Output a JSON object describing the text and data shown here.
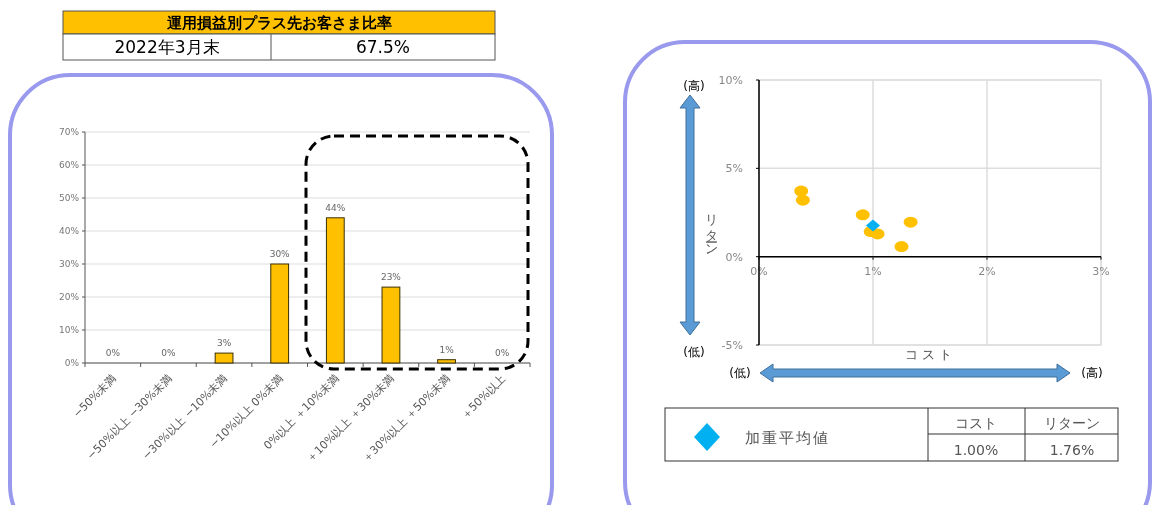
{
  "chart_data": [
    {
      "type": "other",
      "title": "運用損益別プラス先お客さま比率",
      "annotations": [
        "2022年3月末",
        "67.5%"
      ]
    },
    {
      "type": "bar",
      "categories": [
        "−50%未満",
        "−50%以上 −30%未満",
        "−30%以上 −10%未満",
        "−10%以上 0%未満",
        "0%以上 ＋10%未満",
        "＋10%以上 ＋30%未満",
        "＋30%以上 ＋50%未満",
        "＋50%以上"
      ],
      "values": [
        0,
        0,
        3,
        30,
        44,
        23,
        1,
        0
      ],
      "value_labels": [
        "0%",
        "0%",
        "3%",
        "30%",
        "44%",
        "23%",
        "1%",
        "0%"
      ],
      "color": "#ffc000",
      "ylim": [
        0,
        70
      ],
      "yticks": [
        {
          "value": 0,
          "label": "0%"
        },
        {
          "value": 10,
          "label": "10%"
        },
        {
          "value": 20,
          "label": "20%"
        },
        {
          "value": 30,
          "label": "30%"
        },
        {
          "value": 40,
          "label": "40%"
        },
        {
          "value": 50,
          "label": "50%"
        },
        {
          "value": 60,
          "label": "60%"
        },
        {
          "value": 70,
          "label": "70%"
        }
      ],
      "grid": "y"
    },
    {
      "type": "scatter",
      "xlabel": "コスト",
      "ylabel": "リターン",
      "series": [
        {
          "color": "#ffc000",
          "marker": "circle",
          "x": [
            0.37,
            0.385,
            0.91,
            0.98,
            1.04,
            1.25,
            1.33
          ],
          "values": [
            3.71,
            3.2,
            2.37,
            1.42,
            1.29,
            0.57,
            1.95
          ]
        },
        {
          "name": "加重平均値",
          "color": "#00b0f0",
          "marker": "diamond",
          "x": [
            1.0
          ],
          "values": [
            1.76
          ]
        }
      ],
      "xlim": [
        0,
        3
      ],
      "xticks": [
        {
          "value": 0,
          "label": "0%"
        },
        {
          "value": 1,
          "label": "1%"
        },
        {
          "value": 2,
          "label": "2%"
        },
        {
          "value": 3,
          "label": "3%"
        }
      ],
      "ylim": [
        -5,
        10
      ],
      "yticks": [
        {
          "value": -5,
          "label": "-5%"
        },
        {
          "value": 0,
          "label": "0%"
        },
        {
          "value": 5,
          "label": "5%"
        },
        {
          "value": 10,
          "label": "10%"
        }
      ],
      "grid": true,
      "legend": "bottom",
      "annotations": [
        "(高)",
        "(低)",
        "(低)",
        "(高)",
        "コスト",
        "リターン",
        "1.00%",
        "1.76%"
      ]
    }
  ]
}
